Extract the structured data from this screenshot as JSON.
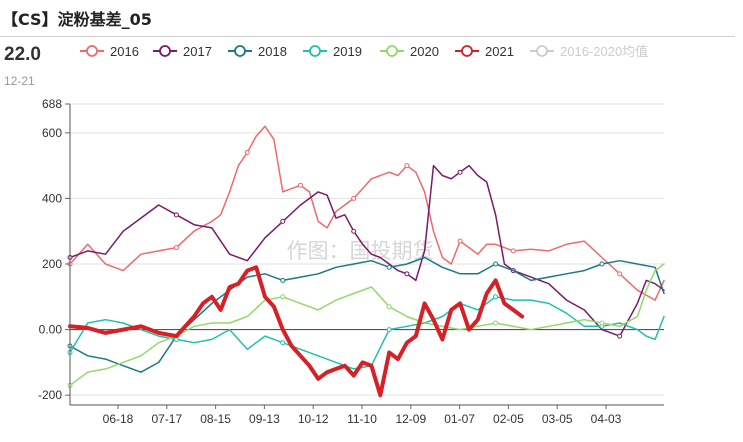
{
  "header": {
    "title": "【CS】淀粉基差_05",
    "current_value": "22.0",
    "current_date": "12-21"
  },
  "watermark": "作图：国投期货",
  "chart_data": {
    "type": "line",
    "ylim": [
      -230,
      688
    ],
    "y_ticks": [
      "688",
      "600",
      "400",
      "200",
      "0.00",
      "-200"
    ],
    "x_ticks": [
      "06-18",
      "07-17",
      "08-15",
      "09-13",
      "10-12",
      "11-10",
      "12-09",
      "01-07",
      "02-05",
      "03-05",
      "04-03"
    ],
    "legend_position": "top",
    "series": [
      {
        "name": "2016",
        "color": "#f06a6a",
        "width": 1.5,
        "muted": false,
        "points": [
          [
            0,
            200
          ],
          [
            2,
            260
          ],
          [
            4,
            200
          ],
          [
            6,
            180
          ],
          [
            8,
            230
          ],
          [
            10,
            240
          ],
          [
            12,
            250
          ],
          [
            14,
            300
          ],
          [
            16,
            330
          ],
          [
            17,
            350
          ],
          [
            18,
            420
          ],
          [
            19,
            500
          ],
          [
            20,
            540
          ],
          [
            21,
            590
          ],
          [
            22,
            620
          ],
          [
            23,
            580
          ],
          [
            24,
            420
          ],
          [
            25,
            430
          ],
          [
            26,
            440
          ],
          [
            27,
            420
          ],
          [
            28,
            330
          ],
          [
            29,
            310
          ],
          [
            30,
            360
          ],
          [
            31,
            380
          ],
          [
            32,
            400
          ],
          [
            33,
            430
          ],
          [
            34,
            460
          ],
          [
            35,
            470
          ],
          [
            36,
            480
          ],
          [
            37,
            470
          ],
          [
            38,
            500
          ],
          [
            39,
            480
          ],
          [
            40,
            420
          ],
          [
            41,
            300
          ],
          [
            42,
            220
          ],
          [
            43,
            200
          ],
          [
            44,
            270
          ],
          [
            45,
            250
          ],
          [
            46,
            230
          ],
          [
            47,
            260
          ],
          [
            48,
            260
          ],
          [
            49,
            250
          ],
          [
            50,
            240
          ],
          [
            52,
            245
          ],
          [
            54,
            240
          ],
          [
            56,
            260
          ],
          [
            58,
            270
          ],
          [
            60,
            220
          ],
          [
            62,
            170
          ],
          [
            64,
            120
          ],
          [
            66,
            90
          ],
          [
            67,
            150
          ]
        ]
      },
      {
        "name": "2017",
        "color": "#7a1a6a",
        "width": 1.5,
        "muted": false,
        "points": [
          [
            0,
            220
          ],
          [
            2,
            240
          ],
          [
            4,
            230
          ],
          [
            6,
            300
          ],
          [
            8,
            340
          ],
          [
            10,
            380
          ],
          [
            12,
            350
          ],
          [
            14,
            320
          ],
          [
            16,
            310
          ],
          [
            18,
            230
          ],
          [
            20,
            210
          ],
          [
            22,
            280
          ],
          [
            24,
            330
          ],
          [
            26,
            380
          ],
          [
            28,
            420
          ],
          [
            29,
            410
          ],
          [
            30,
            340
          ],
          [
            31,
            350
          ],
          [
            32,
            300
          ],
          [
            33,
            260
          ],
          [
            34,
            230
          ],
          [
            35,
            220
          ],
          [
            36,
            200
          ],
          [
            37,
            180
          ],
          [
            38,
            170
          ],
          [
            39,
            150
          ],
          [
            40,
            240
          ],
          [
            41,
            500
          ],
          [
            42,
            470
          ],
          [
            43,
            460
          ],
          [
            44,
            480
          ],
          [
            45,
            500
          ],
          [
            46,
            470
          ],
          [
            47,
            450
          ],
          [
            48,
            350
          ],
          [
            49,
            200
          ],
          [
            50,
            180
          ],
          [
            52,
            160
          ],
          [
            54,
            140
          ],
          [
            56,
            90
          ],
          [
            58,
            60
          ],
          [
            60,
            0
          ],
          [
            62,
            -20
          ],
          [
            64,
            80
          ],
          [
            65,
            150
          ],
          [
            66,
            140
          ],
          [
            67,
            120
          ]
        ]
      },
      {
        "name": "2018",
        "color": "#1a7a85",
        "width": 1.5,
        "muted": false,
        "points": [
          [
            0,
            -50
          ],
          [
            2,
            -80
          ],
          [
            4,
            -90
          ],
          [
            6,
            -110
          ],
          [
            8,
            -130
          ],
          [
            10,
            -100
          ],
          [
            12,
            -20
          ],
          [
            14,
            30
          ],
          [
            16,
            80
          ],
          [
            18,
            120
          ],
          [
            20,
            160
          ],
          [
            22,
            170
          ],
          [
            24,
            150
          ],
          [
            26,
            160
          ],
          [
            28,
            170
          ],
          [
            30,
            190
          ],
          [
            32,
            200
          ],
          [
            34,
            210
          ],
          [
            36,
            190
          ],
          [
            38,
            200
          ],
          [
            40,
            220
          ],
          [
            42,
            190
          ],
          [
            44,
            170
          ],
          [
            46,
            170
          ],
          [
            48,
            200
          ],
          [
            50,
            180
          ],
          [
            52,
            150
          ],
          [
            54,
            160
          ],
          [
            56,
            170
          ],
          [
            58,
            180
          ],
          [
            60,
            200
          ],
          [
            62,
            210
          ],
          [
            64,
            200
          ],
          [
            66,
            190
          ],
          [
            67,
            110
          ]
        ]
      },
      {
        "name": "2019",
        "color": "#20c0b0",
        "width": 1.5,
        "muted": false,
        "points": [
          [
            0,
            -70
          ],
          [
            2,
            20
          ],
          [
            4,
            30
          ],
          [
            6,
            20
          ],
          [
            8,
            0
          ],
          [
            10,
            -20
          ],
          [
            12,
            -30
          ],
          [
            14,
            -40
          ],
          [
            16,
            -30
          ],
          [
            18,
            0
          ],
          [
            20,
            -60
          ],
          [
            22,
            -20
          ],
          [
            24,
            -40
          ],
          [
            26,
            -60
          ],
          [
            28,
            -80
          ],
          [
            30,
            -100
          ],
          [
            32,
            -120
          ],
          [
            34,
            -110
          ],
          [
            36,
            0
          ],
          [
            38,
            10
          ],
          [
            40,
            20
          ],
          [
            42,
            40
          ],
          [
            44,
            80
          ],
          [
            46,
            60
          ],
          [
            48,
            100
          ],
          [
            50,
            90
          ],
          [
            52,
            90
          ],
          [
            54,
            80
          ],
          [
            56,
            50
          ],
          [
            58,
            10
          ],
          [
            60,
            10
          ],
          [
            62,
            20
          ],
          [
            64,
            0
          ],
          [
            65,
            -20
          ],
          [
            66,
            -30
          ],
          [
            67,
            40
          ]
        ]
      },
      {
        "name": "2020",
        "color": "#92d86a",
        "width": 1.5,
        "muted": false,
        "points": [
          [
            0,
            -170
          ],
          [
            2,
            -130
          ],
          [
            4,
            -120
          ],
          [
            6,
            -100
          ],
          [
            8,
            -80
          ],
          [
            10,
            -40
          ],
          [
            12,
            -20
          ],
          [
            14,
            10
          ],
          [
            16,
            20
          ],
          [
            18,
            20
          ],
          [
            20,
            40
          ],
          [
            22,
            90
          ],
          [
            24,
            100
          ],
          [
            26,
            80
          ],
          [
            28,
            60
          ],
          [
            30,
            90
          ],
          [
            32,
            110
          ],
          [
            34,
            130
          ],
          [
            36,
            70
          ],
          [
            38,
            40
          ],
          [
            40,
            20
          ],
          [
            42,
            10
          ],
          [
            44,
            0
          ],
          [
            46,
            10
          ],
          [
            48,
            20
          ],
          [
            50,
            10
          ],
          [
            52,
            0
          ],
          [
            54,
            10
          ],
          [
            56,
            20
          ],
          [
            58,
            30
          ],
          [
            60,
            20
          ],
          [
            62,
            10
          ],
          [
            64,
            40
          ],
          [
            65,
            120
          ],
          [
            66,
            180
          ],
          [
            67,
            200
          ]
        ]
      },
      {
        "name": "2021",
        "color": "#d71f26",
        "width": 4,
        "muted": false,
        "points": [
          [
            0,
            10
          ],
          [
            2,
            5
          ],
          [
            4,
            -10
          ],
          [
            6,
            0
          ],
          [
            8,
            10
          ],
          [
            10,
            -10
          ],
          [
            12,
            -20
          ],
          [
            14,
            40
          ],
          [
            15,
            80
          ],
          [
            16,
            100
          ],
          [
            17,
            60
          ],
          [
            18,
            130
          ],
          [
            19,
            140
          ],
          [
            20,
            180
          ],
          [
            21,
            190
          ],
          [
            22,
            100
          ],
          [
            23,
            70
          ],
          [
            24,
            0
          ],
          [
            25,
            -50
          ],
          [
            26,
            -80
          ],
          [
            27,
            -110
          ],
          [
            28,
            -150
          ],
          [
            29,
            -130
          ],
          [
            30,
            -120
          ],
          [
            31,
            -110
          ],
          [
            32,
            -140
          ],
          [
            33,
            -100
          ],
          [
            34,
            -110
          ],
          [
            35,
            -200
          ],
          [
            36,
            -70
          ],
          [
            37,
            -90
          ],
          [
            38,
            -40
          ],
          [
            39,
            -20
          ],
          [
            40,
            80
          ],
          [
            41,
            30
          ],
          [
            42,
            -30
          ],
          [
            43,
            60
          ],
          [
            44,
            80
          ],
          [
            45,
            0
          ],
          [
            46,
            30
          ],
          [
            47,
            110
          ],
          [
            48,
            150
          ],
          [
            49,
            80
          ],
          [
            50,
            60
          ],
          [
            51,
            40
          ]
        ]
      },
      {
        "name": "2016-2020均值",
        "color": "#cccccc",
        "width": 1.5,
        "muted": true,
        "points": []
      }
    ]
  }
}
